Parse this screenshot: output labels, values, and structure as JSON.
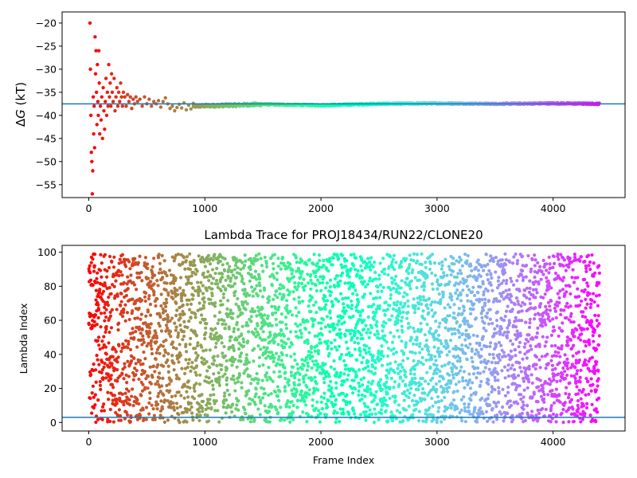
{
  "chart_data": [
    {
      "type": "scatter",
      "title": "",
      "xlabel": "",
      "ylabel": "ΔG (kT)",
      "xlim": [
        -230,
        4620
      ],
      "ylim": [
        -57.8,
        -17.6
      ],
      "xticks": [
        0,
        1000,
        2000,
        3000,
        4000
      ],
      "yticks": [
        -55,
        -50,
        -45,
        -40,
        -35,
        -30,
        -25,
        -20
      ],
      "colormap": "rainbow",
      "x_max": 4400,
      "reference_line": {
        "y": -37.5,
        "color": "#1f77b4"
      },
      "series": {
        "description_points": "per-frame free energy estimate, colored by frame index",
        "early_points": [
          [
            10,
            -20
          ],
          [
            14,
            -30
          ],
          [
            18,
            -40
          ],
          [
            22,
            -48
          ],
          [
            26,
            -50
          ],
          [
            30,
            -57
          ],
          [
            34,
            -52
          ],
          [
            38,
            -36
          ],
          [
            42,
            -44
          ],
          [
            46,
            -38
          ],
          [
            50,
            -47
          ],
          [
            54,
            -23
          ],
          [
            58,
            -31
          ],
          [
            62,
            -26
          ],
          [
            66,
            -35
          ],
          [
            70,
            -42
          ],
          [
            74,
            -29
          ],
          [
            78,
            -37
          ],
          [
            82,
            -40
          ],
          [
            86,
            -26
          ],
          [
            90,
            -33
          ],
          [
            94,
            -44
          ],
          [
            100,
            -38
          ],
          [
            106,
            -41
          ],
          [
            112,
            -36
          ],
          [
            118,
            -45
          ],
          [
            124,
            -34
          ],
          [
            130,
            -39
          ],
          [
            136,
            -43
          ],
          [
            142,
            -37
          ],
          [
            148,
            -32
          ],
          [
            154,
            -40
          ],
          [
            160,
            -35
          ],
          [
            166,
            -38
          ],
          [
            172,
            -29
          ],
          [
            178,
            -36
          ],
          [
            184,
            -33
          ],
          [
            190,
            -38
          ],
          [
            196,
            -31
          ],
          [
            202,
            -35
          ],
          [
            210,
            -37
          ],
          [
            218,
            -32
          ],
          [
            226,
            -39
          ],
          [
            234,
            -36
          ],
          [
            242,
            -34
          ],
          [
            250,
            -38
          ],
          [
            258,
            -35
          ],
          [
            266,
            -37
          ],
          [
            274,
            -33
          ],
          [
            282,
            -36
          ],
          [
            290,
            -38
          ],
          [
            298,
            -35
          ],
          [
            310,
            -36
          ],
          [
            322,
            -38
          ],
          [
            334,
            -35.5
          ],
          [
            346,
            -37
          ],
          [
            358,
            -36
          ],
          [
            370,
            -38.5
          ],
          [
            382,
            -36.5
          ],
          [
            394,
            -37.5
          ],
          [
            406,
            -36
          ],
          [
            420,
            -37
          ],
          [
            440,
            -36.5
          ],
          [
            460,
            -38
          ],
          [
            480,
            -36
          ],
          [
            500,
            -37.5
          ],
          [
            520,
            -36.5
          ],
          [
            540,
            -38
          ],
          [
            560,
            -37
          ],
          [
            580,
            -37.5
          ],
          [
            600,
            -36.8
          ],
          [
            620,
            -38.2
          ],
          [
            640,
            -37
          ],
          [
            660,
            -36.2
          ],
          [
            680,
            -37.5
          ],
          [
            700,
            -38.5
          ],
          [
            720,
            -38
          ],
          [
            740,
            -39
          ],
          [
            760,
            -38.3
          ],
          [
            780,
            -37.6
          ],
          [
            800,
            -38.4
          ],
          [
            820,
            -37.3
          ],
          [
            840,
            -38.8
          ],
          [
            860,
            -37.8
          ],
          [
            880,
            -38.6
          ],
          [
            900,
            -37.4
          ]
        ],
        "late_trend": [
          [
            900,
            -38.0
          ],
          [
            1500,
            -37.6
          ],
          [
            2000,
            -37.8
          ],
          [
            2500,
            -37.5
          ],
          [
            3000,
            -37.4
          ],
          [
            3500,
            -37.5
          ],
          [
            4000,
            -37.4
          ],
          [
            4400,
            -37.5
          ]
        ]
      }
    },
    {
      "type": "scatter",
      "title": "Lambda Trace for PROJ18434/RUN22/CLONE20",
      "xlabel": "Frame Index",
      "ylabel": "Lambda Index",
      "xlim": [
        -230,
        4620
      ],
      "ylim": [
        -5,
        104
      ],
      "xticks": [
        0,
        1000,
        2000,
        3000,
        4000
      ],
      "yticks": [
        0,
        20,
        40,
        60,
        80,
        100
      ],
      "colormap": "rainbow",
      "reference_line": {
        "y": 3,
        "color": "#1f77b4"
      },
      "frame_count": 4400,
      "lambda_range": [
        0,
        99
      ]
    }
  ]
}
